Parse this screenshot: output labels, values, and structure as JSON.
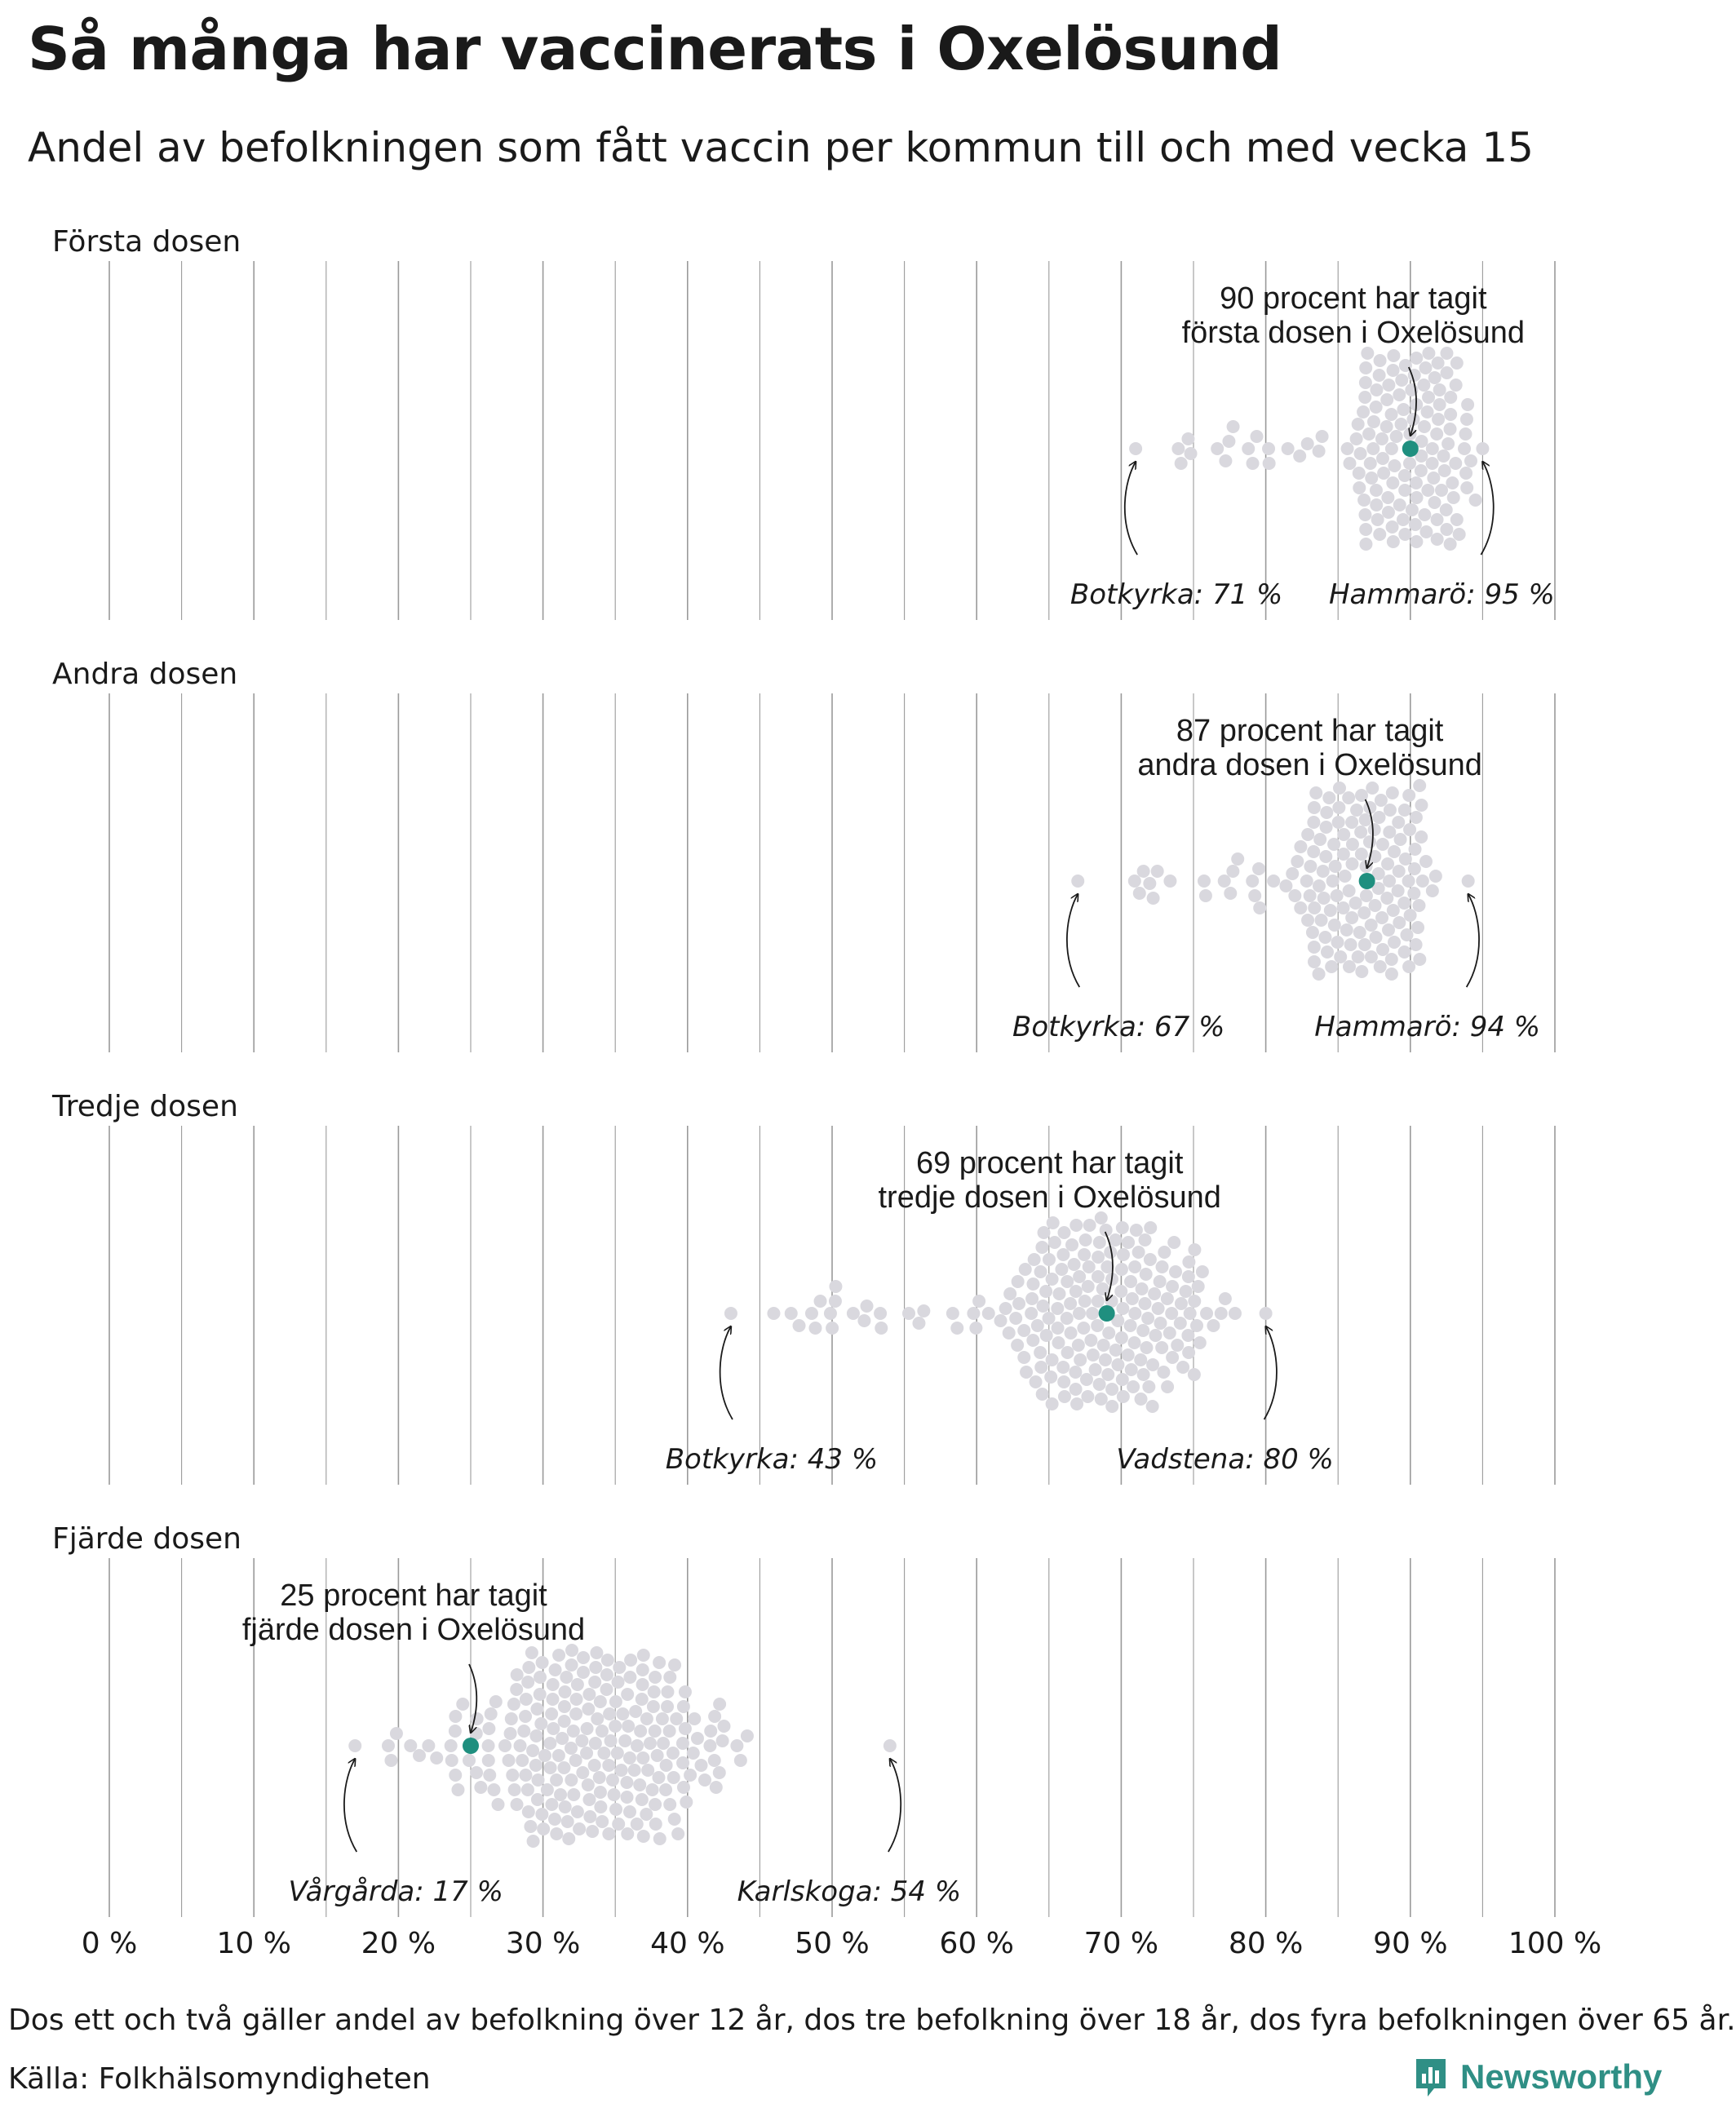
{
  "title": "Så många har vaccinerats i Oxelösund",
  "subtitle": "Andel av befolkningen som fått vaccin per kommun till och med vecka 15",
  "footnote": "Dos ett och två gäller andel av befolkning över 12 år, dos tre befolkning över 18 år, dos fyra befolkningen över 65 år.",
  "source": "Källa: Folkhälsomyndigheten",
  "brand": "Newsworthy",
  "colors": {
    "highlight": "#1f8f7f",
    "dots": "#d9d8de",
    "grid": "#9a9a9a",
    "text": "#1a1a1a",
    "brand": "#2f8f85"
  },
  "chart_data": {
    "type": "scatter",
    "subtype": "beeswarm",
    "xlim": [
      0,
      100
    ],
    "x_ticks": [
      0,
      10,
      20,
      30,
      40,
      50,
      60,
      70,
      80,
      90,
      100
    ],
    "x_tick_labels": [
      "0 %",
      "10 %",
      "20 %",
      "30 %",
      "40 %",
      "50 %",
      "60 %",
      "70 %",
      "80 %",
      "90 %",
      "100 %"
    ],
    "grid": "vertical",
    "highlight_color": "#1f8f7f",
    "dot_color": "#d9d8de",
    "panels": [
      {
        "name": "Första dosen",
        "min": 71,
        "max": 95,
        "center": 90,
        "spread": 2.4,
        "highlight": {
          "value": 90,
          "label_line1": "90 procent har tagit",
          "label_line2": "första dosen i Oxelösund"
        },
        "low": {
          "value": 71,
          "label": "Botkyrka: 71 %"
        },
        "high": {
          "value": 95,
          "label": "Hammarö: 95 %"
        }
      },
      {
        "name": "Andra dosen",
        "min": 67,
        "max": 94,
        "center": 87,
        "spread": 2.7,
        "highlight": {
          "value": 87,
          "label_line1": "87 procent har tagit",
          "label_line2": "andra dosen i Oxelösund"
        },
        "low": {
          "value": 67,
          "label": "Botkyrka: 67 %"
        },
        "high": {
          "value": 94,
          "label": "Hammarö: 94 %"
        }
      },
      {
        "name": "Tredje dosen",
        "min": 43,
        "max": 80,
        "center": 69,
        "spread": 4.5,
        "highlight": {
          "value": 69,
          "label_line1": "69 procent har tagit",
          "label_line2": "tredje dosen i Oxelösund"
        },
        "low": {
          "value": 43,
          "label": "Botkyrka: 43 %"
        },
        "high": {
          "value": 80,
          "label": "Vadstena: 80 %"
        }
      },
      {
        "name": "Fjärde dosen",
        "min": 17,
        "max": 54,
        "center": 34,
        "spread": 6,
        "highlight": {
          "value": 25,
          "label_line1": "25 procent har tagit",
          "label_line2": "fjärde dosen i Oxelösund"
        },
        "low": {
          "value": 17,
          "label": "Vårgårda: 17 %"
        },
        "high": {
          "value": 54,
          "label": "Karlskoga: 54 %"
        }
      }
    ]
  }
}
